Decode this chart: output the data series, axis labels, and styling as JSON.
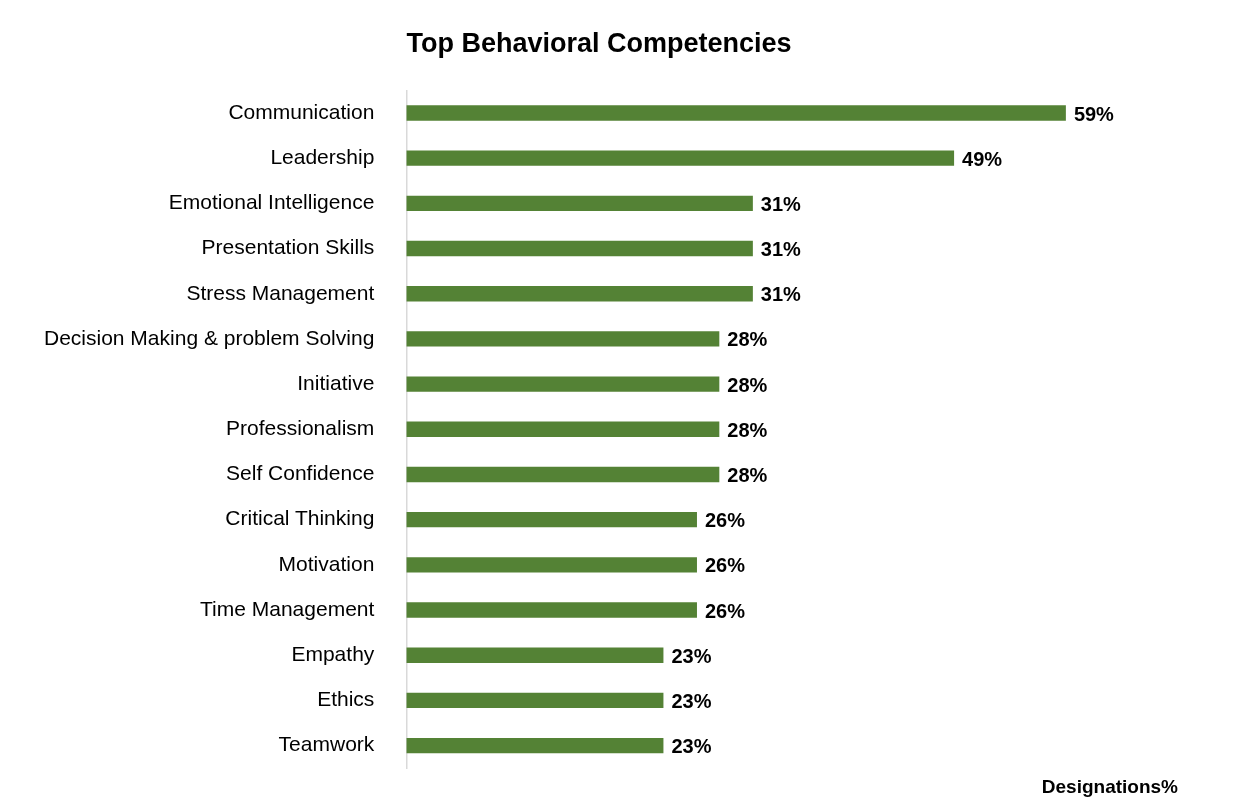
{
  "chart_data": {
    "type": "bar",
    "orientation": "horizontal",
    "title": "Top Behavioral Competencies",
    "xlabel": "Designations%",
    "categories": [
      "Communication",
      "Leadership",
      "Emotional Intelligence",
      "Presentation Skills",
      "Stress Management",
      "Decision Making & problem Solving",
      "Initiative",
      "Professionalism",
      "Self Confidence",
      "Critical Thinking",
      "Motivation",
      "Time Management",
      "Empathy",
      "Ethics",
      "Teamwork"
    ],
    "values": [
      59,
      49,
      31,
      31,
      31,
      28,
      28,
      28,
      28,
      26,
      26,
      26,
      23,
      23,
      23
    ],
    "value_labels": [
      "59%",
      "49%",
      "31%",
      "31%",
      "31%",
      "28%",
      "28%",
      "28%",
      "28%",
      "26%",
      "26%",
      "26%",
      "23%",
      "23%",
      "23%"
    ],
    "color": "#548235",
    "grid": false,
    "legend": false
  }
}
